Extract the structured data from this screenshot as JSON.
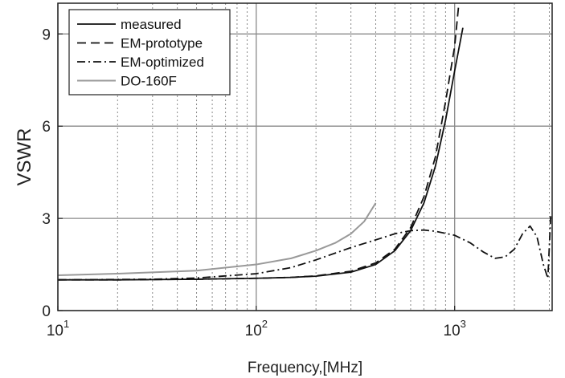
{
  "chart_data": {
    "type": "line",
    "xlabel": "Frequency,[MHz]",
    "ylabel": "VSWR",
    "xscale": "log",
    "xlim": [
      10,
      3100
    ],
    "ylim": [
      0,
      10
    ],
    "x_ticks": [
      {
        "base": "10",
        "exp": "1",
        "value": 10
      },
      {
        "base": "10",
        "exp": "2",
        "value": 100
      },
      {
        "base": "10",
        "exp": "3",
        "value": 1000
      }
    ],
    "y_ticks": [
      {
        "label": "0",
        "value": 0
      },
      {
        "label": "3",
        "value": 3
      },
      {
        "label": "6",
        "value": 6
      },
      {
        "label": "9",
        "value": 9
      }
    ],
    "grid": true,
    "legend_position": "top-left",
    "series": [
      {
        "name": "measured",
        "color": "#111111",
        "dash": "solid",
        "points": [
          [
            10,
            1.0
          ],
          [
            20,
            1.0
          ],
          [
            50,
            1.02
          ],
          [
            100,
            1.05
          ],
          [
            150,
            1.08
          ],
          [
            200,
            1.12
          ],
          [
            300,
            1.25
          ],
          [
            400,
            1.5
          ],
          [
            500,
            1.95
          ],
          [
            600,
            2.6
          ],
          [
            700,
            3.5
          ],
          [
            800,
            4.7
          ],
          [
            900,
            6.2
          ],
          [
            1000,
            7.8
          ],
          [
            1100,
            9.2
          ]
        ]
      },
      {
        "name": "EM-prototype",
        "color": "#111111",
        "dash": "dashed",
        "points": [
          [
            10,
            1.0
          ],
          [
            20,
            1.0
          ],
          [
            50,
            1.02
          ],
          [
            100,
            1.05
          ],
          [
            150,
            1.08
          ],
          [
            200,
            1.13
          ],
          [
            300,
            1.28
          ],
          [
            400,
            1.55
          ],
          [
            500,
            2.0
          ],
          [
            600,
            2.7
          ],
          [
            700,
            3.7
          ],
          [
            800,
            5.0
          ],
          [
            900,
            6.8
          ],
          [
            1000,
            8.6
          ],
          [
            1050,
            10.0
          ]
        ]
      },
      {
        "name": "EM-optimized",
        "color": "#111111",
        "dash": "dashdot",
        "points": [
          [
            10,
            1.0
          ],
          [
            30,
            1.02
          ],
          [
            50,
            1.06
          ],
          [
            100,
            1.2
          ],
          [
            150,
            1.4
          ],
          [
            200,
            1.65
          ],
          [
            300,
            2.05
          ],
          [
            400,
            2.3
          ],
          [
            500,
            2.5
          ],
          [
            600,
            2.6
          ],
          [
            700,
            2.62
          ],
          [
            800,
            2.58
          ],
          [
            1000,
            2.45
          ],
          [
            1200,
            2.2
          ],
          [
            1400,
            1.9
          ],
          [
            1600,
            1.7
          ],
          [
            1800,
            1.75
          ],
          [
            2000,
            2.0
          ],
          [
            2200,
            2.5
          ],
          [
            2400,
            2.75
          ],
          [
            2600,
            2.4
          ],
          [
            2800,
            1.5
          ],
          [
            2950,
            1.05
          ],
          [
            3050,
            3.1
          ]
        ]
      },
      {
        "name": "DO-160F",
        "color": "#999999",
        "dash": "solid",
        "points": [
          [
            10,
            1.15
          ],
          [
            20,
            1.2
          ],
          [
            50,
            1.3
          ],
          [
            100,
            1.5
          ],
          [
            150,
            1.7
          ],
          [
            200,
            1.95
          ],
          [
            250,
            2.2
          ],
          [
            300,
            2.5
          ],
          [
            350,
            2.9
          ],
          [
            400,
            3.5
          ]
        ]
      }
    ]
  }
}
